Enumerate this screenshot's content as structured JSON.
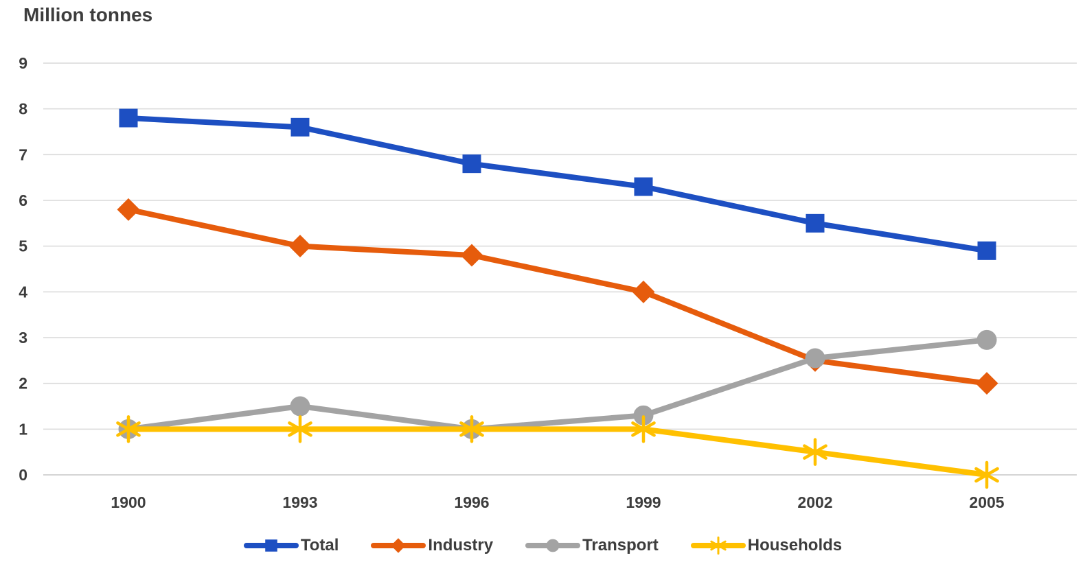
{
  "chart_data": {
    "type": "line",
    "title": "Million tonnes",
    "categories": [
      "1900",
      "1993",
      "1996",
      "1999",
      "2002",
      "2005"
    ],
    "series": [
      {
        "name": "Total",
        "marker": "square",
        "color": "#1d4fc2",
        "values": [
          7.8,
          7.6,
          6.8,
          6.3,
          5.5,
          4.9
        ]
      },
      {
        "name": "Industry",
        "marker": "diamond",
        "color": "#e65c0c",
        "values": [
          5.8,
          5.0,
          4.8,
          4.0,
          2.5,
          2.0
        ]
      },
      {
        "name": "Transport",
        "marker": "circle",
        "color": "#a3a3a3",
        "values": [
          1.0,
          1.5,
          1.0,
          1.3,
          2.55,
          2.95
        ]
      },
      {
        "name": "Households",
        "marker": "asterisk",
        "color": "#ffc000",
        "values": [
          1.0,
          1.0,
          1.0,
          1.0,
          0.5,
          0.0
        ]
      }
    ],
    "ylim": [
      0,
      9
    ],
    "ytick_step": 1,
    "yticks": [
      "0",
      "1",
      "2",
      "3",
      "4",
      "5",
      "6",
      "7",
      "8",
      "9"
    ],
    "grid": true,
    "legend_position": "bottom",
    "xlabel": "",
    "ylabel": ""
  },
  "styles": {
    "background": "#ffffff",
    "text_color": "#3d3d3d",
    "grid_color": "#d9d9d9",
    "axis_line_color": "#c6c6c6"
  }
}
